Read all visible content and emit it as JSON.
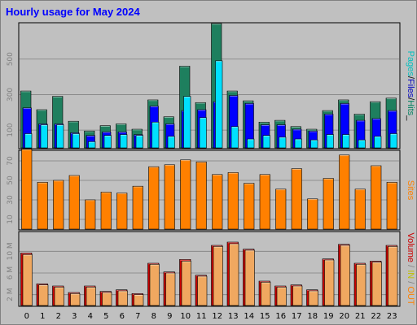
{
  "chart_data": {
    "type": "bar",
    "title": "Hourly usage for May 2024",
    "categories": [
      "0",
      "1",
      "2",
      "3",
      "4",
      "5",
      "6",
      "7",
      "8",
      "9",
      "10",
      "11",
      "12",
      "13",
      "14",
      "15",
      "16",
      "17",
      "18",
      "19",
      "20",
      "21",
      "22",
      "23"
    ],
    "panels": [
      {
        "id": "hits",
        "ylabel_parts": [
          {
            "text": "Pages",
            "color": "#00c0c0"
          },
          {
            "text": "/",
            "color": "#000000"
          },
          {
            "text": "Files",
            "color": "#0000c0"
          },
          {
            "text": "/",
            "color": "#000000"
          },
          {
            "text": "Hits",
            "color": "#008060"
          },
          {
            "text": "_",
            "color": "#000000"
          }
        ],
        "yticks": [
          100,
          300,
          500
        ],
        "ylim": [
          0,
          700
        ],
        "series": [
          {
            "name": "Hits",
            "color": "#1e7f5e",
            "values": [
              320,
              215,
              290,
              150,
              95,
              125,
              135,
              105,
              270,
              175,
              460,
              255,
              700,
              320,
              265,
              145,
              155,
              120,
              105,
              210,
              270,
              190,
              260,
              280
            ]
          },
          {
            "name": "Files",
            "color": "#0000ff",
            "values": [
              225,
              135,
              135,
              85,
              70,
              90,
              90,
              75,
              235,
              135,
              210,
              215,
              260,
              295,
              250,
              130,
              130,
              105,
              95,
              190,
              250,
              155,
              165,
              210
            ]
          },
          {
            "name": "Pages",
            "color": "#00e0ff",
            "values": [
              80,
              130,
              130,
              80,
              35,
              70,
              75,
              70,
              145,
              65,
              290,
              170,
              490,
              120,
              50,
              70,
              60,
              50,
              45,
              75,
              75,
              45,
              65,
              80
            ]
          }
        ]
      },
      {
        "id": "sites",
        "ylabel_parts": [
          {
            "text": "Sites",
            "color": "#ff8000"
          }
        ],
        "yticks": [
          10,
          30,
          50,
          70
        ],
        "ylim": [
          0,
          80
        ],
        "series": [
          {
            "name": "Sites",
            "color": "#ff8000",
            "values": [
              82,
              48,
              50,
              55,
              30,
              38,
              37,
              44,
              64,
              66,
              71,
              69,
              56,
              58,
              47,
              56,
              41,
              62,
              31,
              52,
              76,
              41,
              65,
              48
            ]
          }
        ]
      },
      {
        "id": "volume",
        "ylabel_parts": [
          {
            "text": "Volume",
            "color": "#cc0000"
          },
          {
            "text": " / ",
            "color": "#808080"
          },
          {
            "text": "IN",
            "color": "#c0c000"
          },
          {
            "text": " / ",
            "color": "#808080"
          },
          {
            "text": "OUT",
            "color": "#ff8000"
          }
        ],
        "yticks": [
          2,
          6,
          10
        ],
        "ytick_labels": [
          "2 M",
          "6 M",
          "10 M"
        ],
        "yunit": "M",
        "ylim": [
          0,
          13.5
        ],
        "series": [
          {
            "name": "Volume",
            "color": "#cc0000",
            "values": [
              9.7,
              4.0,
              3.6,
              2.4,
              3.6,
              2.6,
              2.9,
              2.2,
              7.8,
              6.2,
              8.5,
              5.6,
              11.1,
              11.7,
              10.4,
              4.5,
              3.6,
              3.8,
              2.9,
              8.6,
              11.3,
              7.8,
              8.2,
              11.1
            ]
          },
          {
            "name": "OUT",
            "color": "#f0a860",
            "values": [
              9.4,
              3.8,
              3.4,
              2.2,
              3.4,
              2.4,
              2.7,
              2.0,
              7.6,
              6.0,
              8.2,
              5.4,
              10.9,
              11.4,
              10.2,
              4.3,
              3.4,
              3.6,
              2.7,
              8.4,
              11.1,
              7.6,
              8.0,
              10.9
            ]
          }
        ]
      }
    ]
  }
}
